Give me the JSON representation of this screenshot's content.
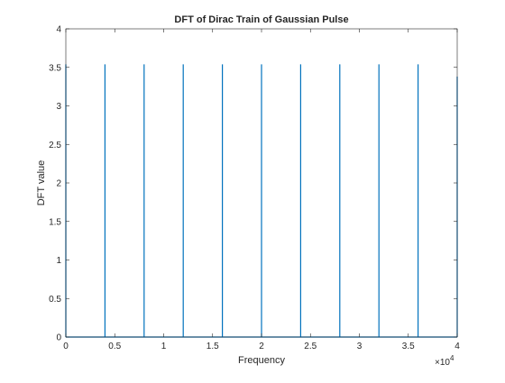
{
  "chart_data": {
    "type": "line",
    "title": "DFT of Dirac Train of Gaussian Pulse",
    "xlabel": "Frequency",
    "ylabel": "DFT value",
    "x_exponent_label": "×10",
    "x_exponent_power": "4",
    "xlim": [
      0,
      4
    ],
    "ylim": [
      0,
      4
    ],
    "x_ticks": [
      0,
      0.5,
      1,
      1.5,
      2,
      2.5,
      3,
      3.5,
      4
    ],
    "x_tick_labels": [
      "0",
      "0.5",
      "1",
      "1.5",
      "2",
      "2.5",
      "3",
      "3.5",
      "4"
    ],
    "y_ticks": [
      0,
      0.5,
      1,
      1.5,
      2,
      2.5,
      3,
      3.5,
      4
    ],
    "y_tick_labels": [
      "0",
      "0.5",
      "1",
      "1.5",
      "2",
      "2.5",
      "3",
      "3.5",
      "4"
    ],
    "grid": false,
    "series": [
      {
        "color": "#0072BD",
        "spikes": [
          {
            "x": 0,
            "y": 3.54
          },
          {
            "x": 0.4,
            "y": 3.54
          },
          {
            "x": 0.8,
            "y": 3.54
          },
          {
            "x": 1.2,
            "y": 3.54
          },
          {
            "x": 1.6,
            "y": 3.54
          },
          {
            "x": 2.0,
            "y": 3.54
          },
          {
            "x": 2.4,
            "y": 3.54
          },
          {
            "x": 2.8,
            "y": 3.54
          },
          {
            "x": 3.2,
            "y": 3.54
          },
          {
            "x": 3.6,
            "y": 3.54
          },
          {
            "x": 4.0,
            "y": 3.38
          }
        ],
        "baseline": 0
      }
    ]
  }
}
